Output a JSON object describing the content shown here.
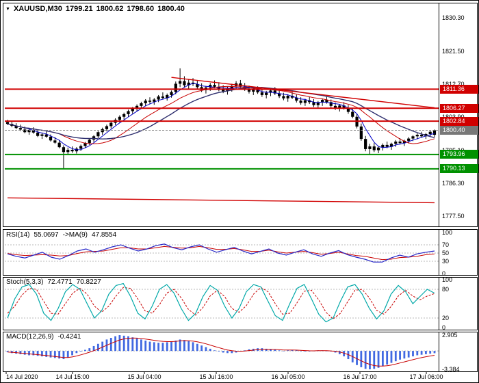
{
  "header": {
    "symbol": "XAUUSD,M30",
    "open": "1799.21",
    "high": "1800.62",
    "low": "1798.60",
    "close": "1800.40"
  },
  "colors": {
    "background": "#ffffff",
    "border": "#000000",
    "candle": "#000000",
    "resistance_line": "#d10000",
    "support_line": "#009100",
    "current_price_bg": "#787878",
    "ma_fast": "#0000c8",
    "ma_mid": "#c80000",
    "ma_slow": "#2e2e6e",
    "rsi_line": "#2626c8",
    "rsi_ma": "#c80000",
    "stoch_k": "#00a8a8",
    "stoch_d": "#c80000",
    "macd_hist": "#4169e1",
    "macd_signal": "#c80000",
    "grid_dash": "#b8b8b8"
  },
  "main_axis": {
    "y_labels": [
      1830.3,
      1821.5,
      1812.7,
      1803.9,
      1795.1,
      1786.3,
      1777.5
    ]
  },
  "price_markers": [
    {
      "label": "1811.36",
      "price": 1811.36,
      "kind": "resistance"
    },
    {
      "label": "1806.27",
      "price": 1806.27,
      "kind": "resistance"
    },
    {
      "label": "1802.84",
      "price": 1802.84,
      "kind": "resistance"
    },
    {
      "label": "1800.40",
      "price": 1800.4,
      "kind": "current"
    },
    {
      "label": "1793.96",
      "price": 1793.96,
      "kind": "support"
    },
    {
      "label": "1790.13",
      "price": 1790.13,
      "kind": "support"
    }
  ],
  "time_axis": [
    "14 Jul 2020",
    "14 Jul 15:00",
    "15 Jul 04:00",
    "15 Jul 16:00",
    "16 Jul 05:00",
    "16 Jul 17:00",
    "17 Jul 06:00"
  ],
  "indicators": {
    "rsi": {
      "name": "RSI(14)",
      "value": "55.0697",
      "ma_name": "->MA(9)",
      "ma_value": "47.8554",
      "levels": [
        "100",
        "70",
        "50",
        "30",
        "0"
      ]
    },
    "stoch": {
      "name": "Stoch(5,3,3)",
      "k_value": "72.4771",
      "d_value": "70.8227",
      "levels": [
        "100",
        "80",
        "20",
        "0"
      ]
    },
    "macd": {
      "name": "MACD(12,26,9)",
      "value": "-0.4241",
      "levels": [
        "2.905",
        "-3.384"
      ]
    }
  },
  "chart_data": [
    {
      "type": "candlestick",
      "title": "XAUUSD,M30",
      "ylim": [
        1774.8,
        1834.2
      ],
      "ohlc": [
        [
          1802.6,
          1803.2,
          1801.8,
          1802.1
        ],
        [
          1802.1,
          1802.8,
          1801.2,
          1801.6
        ],
        [
          1801.6,
          1802.3,
          1800.7,
          1801.0
        ],
        [
          1801.0,
          1801.9,
          1800.2,
          1800.6
        ],
        [
          1800.6,
          1801.4,
          1799.6,
          1799.9
        ],
        [
          1799.9,
          1801.0,
          1799.2,
          1800.5
        ],
        [
          1800.5,
          1801.2,
          1799.5,
          1799.8
        ],
        [
          1799.8,
          1800.4,
          1798.6,
          1798.9
        ],
        [
          1798.9,
          1799.8,
          1798.1,
          1799.3
        ],
        [
          1799.3,
          1800.1,
          1798.4,
          1798.7
        ],
        [
          1798.7,
          1799.3,
          1797.4,
          1797.7
        ],
        [
          1797.7,
          1798.6,
          1796.8,
          1797.1
        ],
        [
          1797.1,
          1797.8,
          1795.6,
          1795.9
        ],
        [
          1795.9,
          1796.4,
          1790.3,
          1794.6
        ],
        [
          1794.6,
          1795.8,
          1793.9,
          1795.2
        ],
        [
          1795.2,
          1796.1,
          1794.4,
          1794.8
        ],
        [
          1794.8,
          1795.9,
          1794.2,
          1795.5
        ],
        [
          1795.5,
          1796.6,
          1794.9,
          1796.2
        ],
        [
          1796.2,
          1797.3,
          1795.7,
          1797.0
        ],
        [
          1797.0,
          1798.2,
          1796.5,
          1797.9
        ],
        [
          1797.9,
          1799.1,
          1797.3,
          1798.8
        ],
        [
          1798.8,
          1800.2,
          1798.3,
          1799.9
        ],
        [
          1799.9,
          1801.1,
          1799.2,
          1800.7
        ],
        [
          1800.7,
          1801.9,
          1800.1,
          1801.5
        ],
        [
          1801.5,
          1802.8,
          1800.9,
          1802.4
        ],
        [
          1802.4,
          1803.6,
          1801.8,
          1803.2
        ],
        [
          1803.2,
          1804.4,
          1802.5,
          1804.0
        ],
        [
          1804.0,
          1805.1,
          1803.3,
          1804.7
        ],
        [
          1804.7,
          1805.9,
          1804.0,
          1805.5
        ],
        [
          1805.5,
          1806.6,
          1804.8,
          1806.2
        ],
        [
          1806.2,
          1807.3,
          1805.4,
          1806.9
        ],
        [
          1806.9,
          1808.0,
          1806.1,
          1807.6
        ],
        [
          1807.6,
          1808.7,
          1806.8,
          1808.3
        ],
        [
          1808.3,
          1809.2,
          1807.4,
          1808.0
        ],
        [
          1808.0,
          1809.0,
          1807.2,
          1808.6
        ],
        [
          1808.6,
          1809.8,
          1807.9,
          1809.4
        ],
        [
          1809.4,
          1810.5,
          1808.6,
          1809.0
        ],
        [
          1809.0,
          1810.2,
          1808.3,
          1809.8
        ],
        [
          1809.8,
          1811.0,
          1809.1,
          1810.6
        ],
        [
          1810.6,
          1813.4,
          1810.0,
          1812.8
        ],
        [
          1812.8,
          1816.9,
          1811.9,
          1813.5
        ],
        [
          1813.5,
          1814.8,
          1811.8,
          1812.4
        ],
        [
          1812.4,
          1813.9,
          1811.5,
          1813.1
        ],
        [
          1813.1,
          1814.3,
          1812.2,
          1812.7
        ],
        [
          1812.7,
          1813.6,
          1811.4,
          1811.9
        ],
        [
          1811.9,
          1812.9,
          1810.6,
          1811.1
        ],
        [
          1811.1,
          1812.2,
          1810.2,
          1811.8
        ],
        [
          1811.8,
          1813.0,
          1810.9,
          1812.5
        ],
        [
          1812.5,
          1813.7,
          1811.6,
          1812.0
        ],
        [
          1812.0,
          1813.2,
          1810.8,
          1811.3
        ],
        [
          1811.3,
          1812.4,
          1810.3,
          1810.8
        ],
        [
          1810.8,
          1812.0,
          1809.9,
          1811.5
        ],
        [
          1811.5,
          1812.8,
          1810.7,
          1812.2
        ],
        [
          1812.2,
          1813.5,
          1811.3,
          1812.9
        ],
        [
          1812.9,
          1813.8,
          1811.7,
          1812.1
        ],
        [
          1812.1,
          1813.0,
          1810.9,
          1811.4
        ],
        [
          1811.4,
          1812.3,
          1810.2,
          1810.7
        ],
        [
          1810.7,
          1811.8,
          1809.8,
          1811.2
        ],
        [
          1811.2,
          1812.1,
          1810.1,
          1810.5
        ],
        [
          1810.5,
          1811.4,
          1809.3,
          1809.8
        ],
        [
          1809.8,
          1810.9,
          1808.9,
          1810.4
        ],
        [
          1810.4,
          1811.5,
          1809.5,
          1811.0
        ],
        [
          1811.0,
          1811.9,
          1809.8,
          1810.2
        ],
        [
          1810.2,
          1811.1,
          1809.0,
          1809.5
        ],
        [
          1809.5,
          1810.4,
          1808.4,
          1808.9
        ],
        [
          1808.9,
          1810.0,
          1808.0,
          1809.6
        ],
        [
          1809.6,
          1810.6,
          1808.7,
          1809.1
        ],
        [
          1809.1,
          1809.9,
          1807.8,
          1808.3
        ],
        [
          1808.3,
          1809.2,
          1807.2,
          1807.7
        ],
        [
          1807.7,
          1808.8,
          1806.9,
          1808.4
        ],
        [
          1808.4,
          1809.3,
          1807.4,
          1807.9
        ],
        [
          1807.9,
          1808.7,
          1806.6,
          1807.1
        ],
        [
          1807.1,
          1808.2,
          1806.2,
          1807.8
        ],
        [
          1807.8,
          1808.9,
          1806.9,
          1808.5
        ],
        [
          1808.5,
          1809.4,
          1807.5,
          1807.9
        ],
        [
          1807.9,
          1808.6,
          1806.4,
          1806.9
        ],
        [
          1806.9,
          1807.8,
          1805.8,
          1806.3
        ],
        [
          1806.3,
          1807.4,
          1805.4,
          1807.0
        ],
        [
          1807.0,
          1807.9,
          1805.9,
          1806.4
        ],
        [
          1806.4,
          1807.1,
          1804.8,
          1805.3
        ],
        [
          1805.3,
          1806.2,
          1803.6,
          1804.0
        ],
        [
          1804.0,
          1804.8,
          1800.9,
          1801.4
        ],
        [
          1801.4,
          1802.2,
          1797.6,
          1798.1
        ],
        [
          1798.1,
          1798.9,
          1794.8,
          1795.4
        ],
        [
          1795.4,
          1796.8,
          1793.8,
          1796.1
        ],
        [
          1796.1,
          1797.0,
          1794.6,
          1795.1
        ],
        [
          1795.1,
          1796.2,
          1794.3,
          1795.8
        ],
        [
          1795.8,
          1796.9,
          1795.0,
          1796.5
        ],
        [
          1796.5,
          1797.4,
          1795.6,
          1796.0
        ],
        [
          1796.0,
          1797.1,
          1795.2,
          1796.8
        ],
        [
          1796.8,
          1797.8,
          1796.0,
          1797.4
        ],
        [
          1797.4,
          1798.3,
          1796.6,
          1797.0
        ],
        [
          1797.0,
          1797.9,
          1796.2,
          1797.6
        ],
        [
          1797.6,
          1798.6,
          1796.9,
          1798.2
        ],
        [
          1798.2,
          1799.1,
          1797.5,
          1798.8
        ],
        [
          1798.8,
          1799.6,
          1798.0,
          1799.2
        ],
        [
          1799.2,
          1800.0,
          1798.4,
          1798.8
        ],
        [
          1798.8,
          1799.7,
          1798.1,
          1799.4
        ],
        [
          1799.4,
          1800.3,
          1798.7,
          1800.0
        ],
        [
          1799.2,
          1800.6,
          1798.6,
          1800.4
        ]
      ],
      "hlines": [
        {
          "price": 1811.36,
          "color": "#d10000",
          "width": 2
        },
        {
          "price": 1806.27,
          "color": "#d10000",
          "width": 2
        },
        {
          "price": 1802.84,
          "color": "#d10000",
          "width": 2
        },
        {
          "price": 1800.4,
          "color": "#8c8c8c",
          "width": 1,
          "dash": "3,2"
        },
        {
          "price": 1793.96,
          "color": "#009100",
          "width": 2
        },
        {
          "price": 1790.13,
          "color": "#009100",
          "width": 2
        }
      ],
      "trendlines": [
        {
          "from": [
            38,
            1814.5
          ],
          "to": [
            99,
            1806.4
          ],
          "color": "#d10000"
        },
        {
          "from": [
            0,
            1782.4
          ],
          "to": [
            99,
            1781.1
          ],
          "color": "#d10000"
        }
      ],
      "moving_averages": [
        {
          "period": 5,
          "color": "#0000c8"
        },
        {
          "period": 13,
          "color": "#c80000"
        },
        {
          "period": 21,
          "color": "#2e2e6e"
        }
      ]
    },
    {
      "type": "line",
      "name": "RSI(14)",
      "range": [
        0,
        100
      ],
      "levels": [
        70,
        50,
        30
      ],
      "values": [
        48,
        42,
        38,
        45,
        52,
        40,
        35,
        44,
        55,
        60,
        52,
        58,
        65,
        70,
        62,
        55,
        60,
        68,
        72,
        63,
        58,
        65,
        70,
        60,
        52,
        58,
        64,
        55,
        48,
        54,
        60,
        50,
        45,
        52,
        58,
        48,
        42,
        50,
        56,
        46,
        40,
        35,
        28,
        28,
        38,
        45,
        40,
        48,
        52,
        55
      ],
      "ma_values": [
        49,
        46,
        44,
        45,
        46,
        45,
        43,
        44,
        49,
        53,
        54,
        55,
        59,
        63,
        63,
        60,
        60,
        63,
        66,
        64,
        62,
        63,
        66,
        63,
        59,
        59,
        61,
        58,
        54,
        54,
        57,
        53,
        50,
        52,
        54,
        51,
        47,
        49,
        52,
        48,
        44,
        42,
        38,
        34,
        35,
        39,
        40,
        42,
        46,
        48
      ]
    },
    {
      "type": "line",
      "name": "Stoch(5,3,3)",
      "range": [
        0,
        100
      ],
      "levels": [
        80,
        20
      ],
      "k_values": [
        20,
        60,
        85,
        90,
        70,
        30,
        15,
        40,
        75,
        90,
        80,
        50,
        20,
        35,
        70,
        88,
        92,
        65,
        30,
        18,
        45,
        80,
        90,
        72,
        40,
        15,
        30,
        65,
        88,
        78,
        45,
        20,
        40,
        75,
        90,
        85,
        55,
        25,
        15,
        50,
        82,
        90,
        60,
        28,
        12,
        20,
        55,
        85,
        90,
        70,
        40,
        18,
        35,
        70,
        88,
        75,
        50,
        65,
        80,
        72
      ],
      "d_values": [
        30,
        45,
        68,
        82,
        80,
        55,
        30,
        28,
        50,
        72,
        82,
        70,
        45,
        32,
        45,
        66,
        84,
        82,
        60,
        35,
        30,
        48,
        72,
        80,
        62,
        38,
        26,
        42,
        66,
        78,
        65,
        40,
        32,
        46,
        70,
        84,
        75,
        50,
        28,
        30,
        52,
        76,
        78,
        58,
        32,
        18,
        30,
        54,
        78,
        80,
        62,
        36,
        28,
        44,
        66,
        78,
        66,
        58,
        66,
        71
      ]
    },
    {
      "type": "bar",
      "name": "MACD(12,26,9)",
      "range": [
        -3.384,
        2.905
      ],
      "values": [
        -0.2,
        -0.4,
        -0.5,
        -0.6,
        -0.7,
        -0.8,
        -0.8,
        -0.9,
        -1.0,
        -1.1,
        -1.2,
        -1.3,
        -1.4,
        -1.5,
        -1.2,
        -0.8,
        -0.4,
        -0.1,
        0.2,
        0.5,
        0.9,
        1.3,
        1.7,
        2.1,
        2.4,
        2.7,
        2.9,
        2.8,
        2.7,
        2.5,
        2.3,
        2.1,
        1.9,
        1.7,
        1.6,
        1.5,
        1.5,
        1.6,
        1.7,
        1.9,
        2.1,
        2.0,
        1.8,
        1.6,
        1.3,
        1.0,
        0.7,
        0.4,
        0.1,
        -0.1,
        -0.3,
        -0.4,
        -0.4,
        -0.3,
        -0.1,
        0.1,
        0.3,
        0.4,
        0.5,
        0.5,
        0.4,
        0.3,
        0.2,
        0.1,
        0.0,
        0.1,
        0.2,
        0.1,
        0.0,
        -0.1,
        -0.1,
        0.0,
        0.1,
        0.1,
        0.0,
        -0.1,
        -0.3,
        -0.6,
        -1.0,
        -1.5,
        -2.1,
        -2.6,
        -3.0,
        -3.3,
        -3.38,
        -3.3,
        -3.1,
        -2.8,
        -2.5,
        -2.2,
        -1.9,
        -1.6,
        -1.4,
        -1.2,
        -1.0,
        -0.8,
        -0.7,
        -0.6,
        -0.5,
        -0.42
      ]
    }
  ]
}
